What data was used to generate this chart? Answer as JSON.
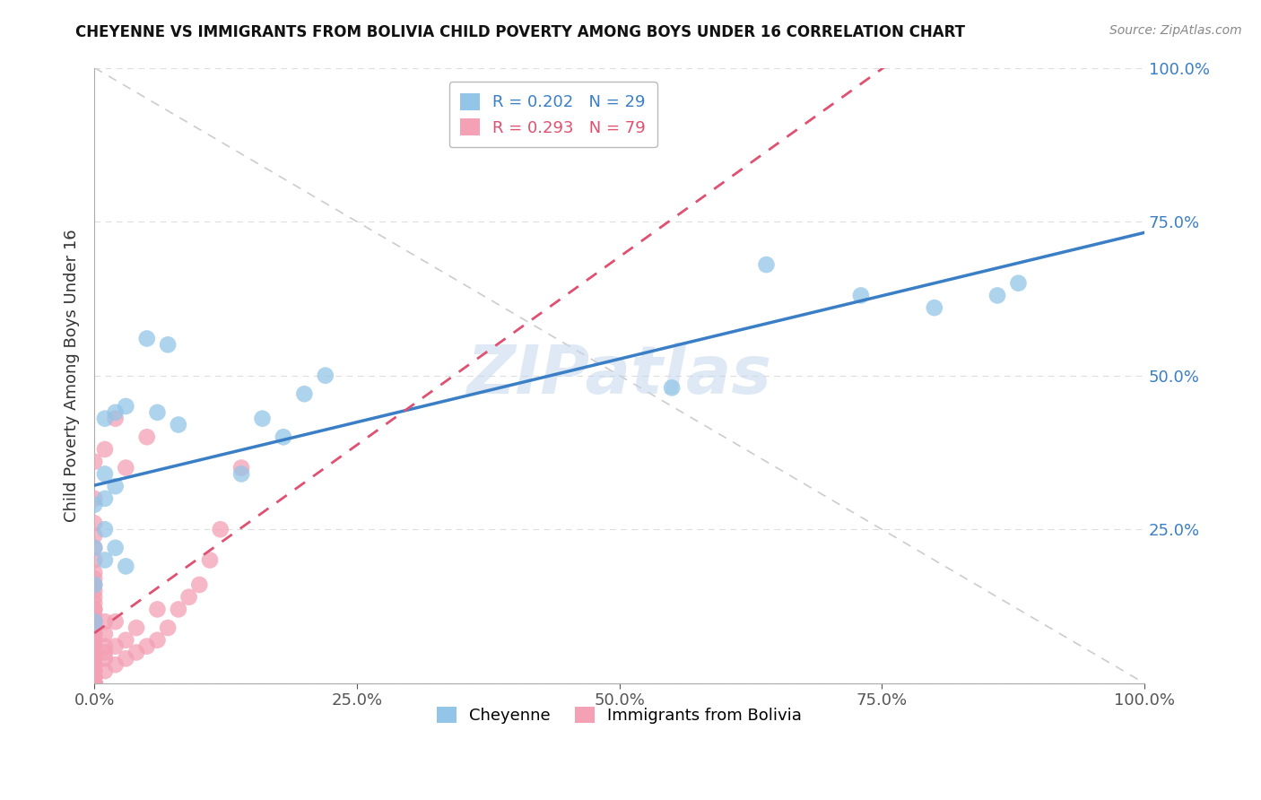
{
  "title": "CHEYENNE VS IMMIGRANTS FROM BOLIVIA CHILD POVERTY AMONG BOYS UNDER 16 CORRELATION CHART",
  "source": "Source: ZipAtlas.com",
  "ylabel": "Child Poverty Among Boys Under 16",
  "xlim": [
    0,
    1.0
  ],
  "ylim": [
    0,
    1.0
  ],
  "xtick_labels": [
    "0.0%",
    "25.0%",
    "50.0%",
    "75.0%",
    "100.0%"
  ],
  "xtick_vals": [
    0.0,
    0.25,
    0.5,
    0.75,
    1.0
  ],
  "ytick_vals": [
    0.0,
    0.25,
    0.5,
    0.75,
    1.0
  ],
  "ytick_labels_right": [
    "",
    "25.0%",
    "50.0%",
    "75.0%",
    "100.0%"
  ],
  "legend_r1": "R = 0.202",
  "legend_n1": "N = 29",
  "legend_r2": "R = 0.293",
  "legend_n2": "N = 79",
  "legend_label1": "Cheyenne",
  "legend_label2": "Immigrants from Bolivia",
  "watermark": "ZIPatlas",
  "blue_color": "#92C5E8",
  "pink_color": "#F4A0B5",
  "line_blue": "#3A7EC6",
  "line_pink": "#E05070",
  "legend_text_blue": "#3A7EC6",
  "legend_text_pink": "#E05070",
  "cheyenne_x": [
    0.0,
    0.0,
    0.0,
    0.0,
    0.01,
    0.01,
    0.01,
    0.01,
    0.01,
    0.02,
    0.02,
    0.02,
    0.03,
    0.03,
    0.05,
    0.06,
    0.07,
    0.08,
    0.14,
    0.16,
    0.18,
    0.2,
    0.22,
    0.55,
    0.64,
    0.73,
    0.8,
    0.86,
    0.88
  ],
  "cheyenne_y": [
    0.1,
    0.16,
    0.22,
    0.29,
    0.2,
    0.25,
    0.3,
    0.34,
    0.43,
    0.22,
    0.32,
    0.44,
    0.19,
    0.45,
    0.56,
    0.44,
    0.55,
    0.42,
    0.34,
    0.43,
    0.4,
    0.47,
    0.5,
    0.48,
    0.68,
    0.63,
    0.61,
    0.63,
    0.65
  ],
  "bolivia_x": [
    0.0,
    0.0,
    0.0,
    0.0,
    0.0,
    0.0,
    0.0,
    0.0,
    0.0,
    0.0,
    0.0,
    0.0,
    0.0,
    0.0,
    0.0,
    0.0,
    0.0,
    0.0,
    0.0,
    0.0,
    0.0,
    0.0,
    0.0,
    0.0,
    0.0,
    0.0,
    0.0,
    0.0,
    0.0,
    0.0,
    0.0,
    0.0,
    0.0,
    0.0,
    0.0,
    0.0,
    0.0,
    0.0,
    0.0,
    0.0,
    0.0,
    0.0,
    0.0,
    0.0,
    0.0,
    0.0,
    0.0,
    0.0,
    0.0,
    0.0,
    0.0,
    0.0,
    0.01,
    0.01,
    0.01,
    0.01,
    0.01,
    0.01,
    0.01,
    0.02,
    0.02,
    0.02,
    0.02,
    0.03,
    0.03,
    0.03,
    0.04,
    0.04,
    0.05,
    0.05,
    0.06,
    0.06,
    0.07,
    0.08,
    0.09,
    0.1,
    0.11,
    0.12,
    0.14
  ],
  "bolivia_y": [
    0.0,
    0.0,
    0.0,
    0.0,
    0.0,
    0.0,
    0.0,
    0.0,
    0.0,
    0.0,
    0.0,
    0.0,
    0.0,
    0.0,
    0.0,
    0.01,
    0.01,
    0.01,
    0.02,
    0.02,
    0.03,
    0.03,
    0.04,
    0.04,
    0.05,
    0.05,
    0.06,
    0.06,
    0.07,
    0.07,
    0.08,
    0.08,
    0.08,
    0.09,
    0.09,
    0.1,
    0.1,
    0.11,
    0.12,
    0.12,
    0.13,
    0.14,
    0.15,
    0.16,
    0.17,
    0.18,
    0.2,
    0.22,
    0.24,
    0.26,
    0.3,
    0.36,
    0.02,
    0.04,
    0.05,
    0.06,
    0.08,
    0.1,
    0.38,
    0.03,
    0.06,
    0.1,
    0.43,
    0.04,
    0.07,
    0.35,
    0.05,
    0.09,
    0.06,
    0.4,
    0.07,
    0.12,
    0.09,
    0.12,
    0.14,
    0.16,
    0.2,
    0.25,
    0.35
  ],
  "grid_color": "#DDDDDD",
  "diag_color": "#CCCCCC",
  "bg_color": "#FFFFFF"
}
